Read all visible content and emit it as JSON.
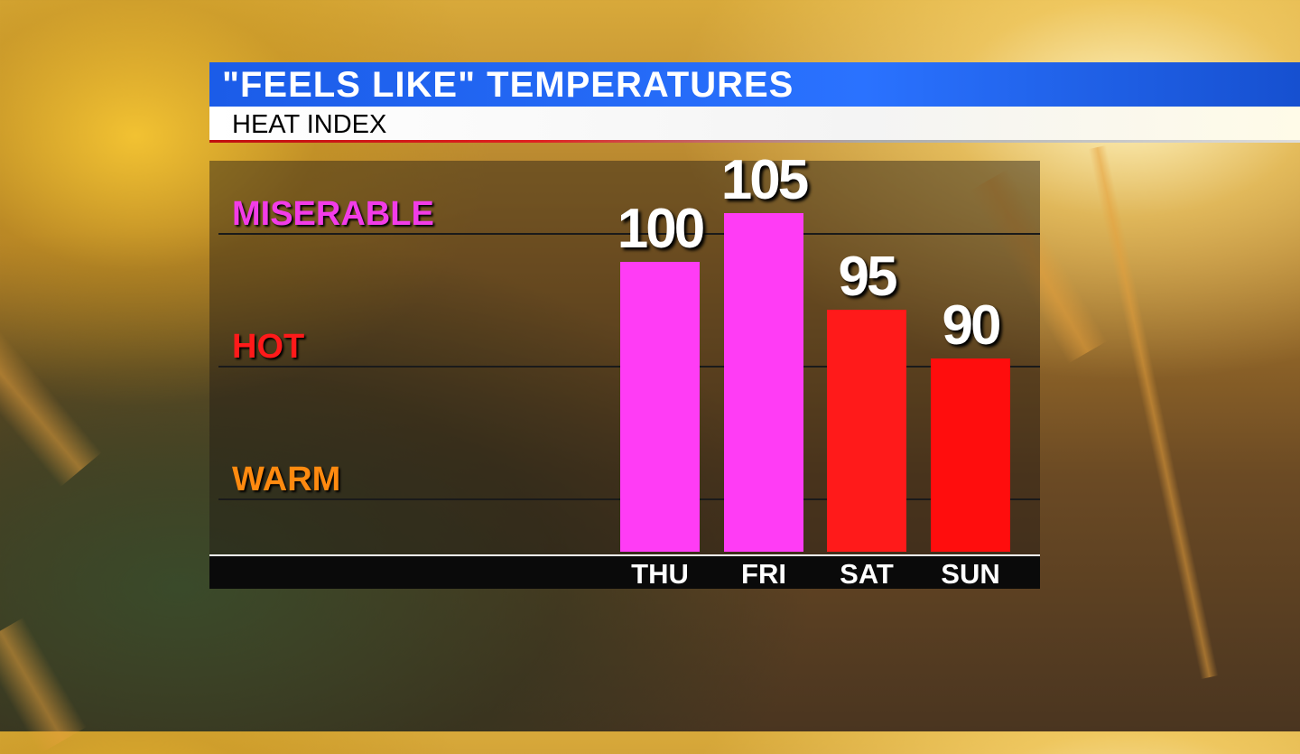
{
  "header": {
    "title": "\"FEELS LIKE\" TEMPERATURES",
    "subtitle": "HEAT INDEX"
  },
  "chart_data": {
    "type": "bar",
    "title": "\"FEELS LIKE\" TEMPERATURES",
    "subtitle": "HEAT INDEX",
    "categories": [
      "THU",
      "FRI",
      "SAT",
      "SUN"
    ],
    "values": [
      100,
      105,
      95,
      90
    ],
    "colors": [
      "#ff3cf5",
      "#ff3cf5",
      "#ff1a1a",
      "#ff0d0d"
    ],
    "bands": [
      {
        "label": "MISERABLE",
        "color": "#f23ce8"
      },
      {
        "label": "HOT",
        "color": "#ff1a1a"
      },
      {
        "label": "WARM",
        "color": "#ff8a10"
      }
    ],
    "grid": true
  }
}
